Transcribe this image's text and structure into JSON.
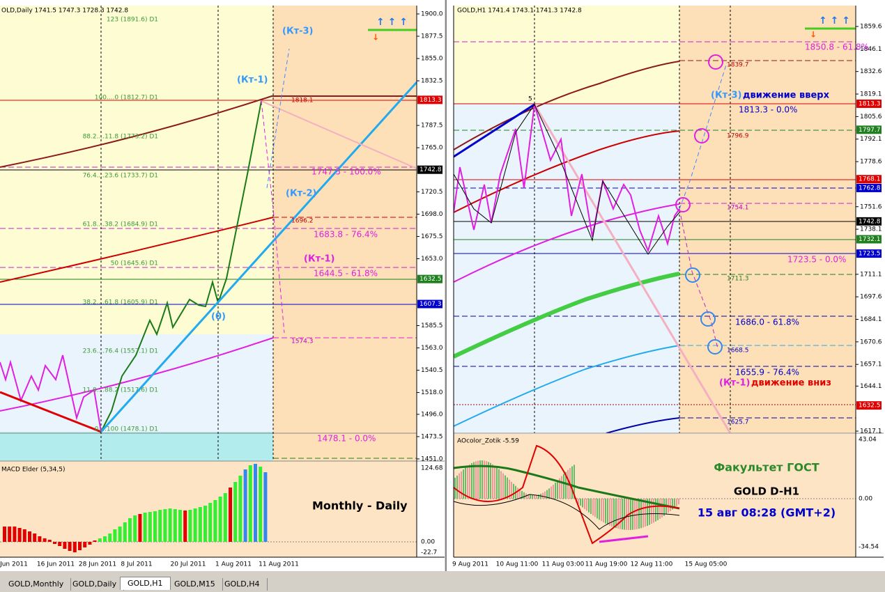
{
  "tabs": [
    "GOLD,Monthly",
    "GOLD,Daily",
    "GOLD,H1",
    "GOLD,M15",
    "GOLD,H4"
  ],
  "left_chart": {
    "header": "OLD,Daily  1741.5 1747.3 1728.3 1742.8",
    "price_ticks": [
      "1900.0",
      "1877.5",
      "1855.0",
      "1832.5",
      "1787.5",
      "1765.0",
      "1720.5",
      "1698.0",
      "1675.5",
      "1653.0",
      "1585.5",
      "1563.0",
      "1540.5",
      "1518.0",
      "1496.0",
      "1473.5",
      "1451.0"
    ],
    "price_boxes": [
      "1813.3",
      "1742.8",
      "1632.5",
      "1607.3"
    ],
    "fib_labels": [
      "123 (1891.6) D1",
      "100....0 (1812.7) D1",
      "88.2....11.8 (1773.2) D1",
      "76.4....23.6 (1733.7) D1",
      "61.8....38.2 (1684.9) D1",
      "50 (1645.6) D1",
      "38.2....61.8 (1605.9) D1",
      "23.6....76.4 (1557.1) D1",
      "11.8....88.2 (1517.6) D1",
      "0....100 (1478.1) D1"
    ],
    "level_labels": [
      "1818.1",
      "1696.2",
      "1574.3"
    ],
    "annotations": [
      "(Кт-3)",
      "(Кт-1)",
      "(Кт-2)",
      "(Кт-1)",
      "(0)",
      "1747.5 - 100.0%",
      "1683.8 - 76.4%",
      "1644.5 - 61.8%",
      "1478.1 - 0.0%",
      "Monthly - Daily"
    ],
    "indicator": {
      "header": "MACD Elder (5,34,5)",
      "ticks": [
        "124.68",
        "0.00",
        "-22.7"
      ]
    },
    "dates": [
      "Jun 2011",
      "16 Jun 2011",
      "28 Jun 2011",
      "8 Jul 2011",
      "20 Jul 2011",
      "1 Aug 2011",
      "11 Aug 2011"
    ]
  },
  "right_chart": {
    "header": "GOLD,H1  1741.4 1743.1 1741.3 1742.8",
    "price_ticks": [
      "1859.6",
      "1846.1",
      "1832.6",
      "1819.1",
      "1805.6",
      "1792.1",
      "1778.6",
      "1751.6",
      "1738.1",
      "1711.1",
      "1697.6",
      "1684.1",
      "1670.6",
      "1657.1",
      "1644.1",
      "1617.1"
    ],
    "price_boxes": [
      "1813.3",
      "1797.7",
      "1768.1",
      "1762.8",
      "1742.8",
      "1732.1",
      "1723.5",
      "1632.5"
    ],
    "wave_label": "5",
    "level_labels": [
      "1839.7",
      "1796.9",
      "1754.1",
      "1711.3",
      "1668.5",
      "1625.7"
    ],
    "annotations": [
      "(Кт-3)",
      "движение вверх",
      "1850.8 - 61.8%",
      "1813.3 - 0.0%",
      "1723.5 - 0.0%",
      "1686.0 - 61.8%",
      "1655.9 - 76.4%",
      "(Кт-1)",
      "движение вниз"
    ],
    "caption": {
      "faculty": "Факультет ГОСТ",
      "symbol": "GOLD   D-H1",
      "time": "15 авг 08:28 (GMT+2)"
    },
    "indicator": {
      "header": "AOcolor_Zotik -5.59",
      "ticks": [
        "43.04",
        "0.00",
        "-34.54"
      ]
    },
    "dates": [
      "9 Aug 2011",
      "10 Aug 11:00",
      "11 Aug 03:00",
      "11 Aug 19:00",
      "12 Aug 11:00",
      "15 Aug 05:00"
    ]
  }
}
